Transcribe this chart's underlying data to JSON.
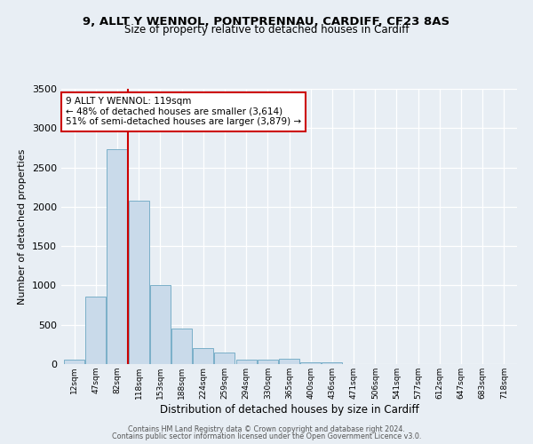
{
  "title_line1": "9, ALLT Y WENNOL, PONTPRENNAU, CARDIFF, CF23 8AS",
  "title_line2": "Size of property relative to detached houses in Cardiff",
  "xlabel": "Distribution of detached houses by size in Cardiff",
  "ylabel": "Number of detached properties",
  "categories": [
    "12sqm",
    "47sqm",
    "82sqm",
    "118sqm",
    "153sqm",
    "188sqm",
    "224sqm",
    "259sqm",
    "294sqm",
    "330sqm",
    "365sqm",
    "400sqm",
    "436sqm",
    "471sqm",
    "506sqm",
    "541sqm",
    "577sqm",
    "612sqm",
    "647sqm",
    "683sqm",
    "718sqm"
  ],
  "bar_heights": [
    55,
    855,
    2730,
    2075,
    1010,
    455,
    205,
    145,
    60,
    60,
    70,
    25,
    20,
    0,
    0,
    0,
    0,
    0,
    0,
    0,
    0
  ],
  "bar_color": "#c9daea",
  "bar_edge_color": "#7aafc8",
  "ylim": [
    0,
    3500
  ],
  "yticks": [
    0,
    500,
    1000,
    1500,
    2000,
    2500,
    3000,
    3500
  ],
  "property_line_x": 2.5,
  "property_line_color": "#cc0000",
  "annotation_line1": "9 ALLT Y WENNOL: 119sqm",
  "annotation_line2": "← 48% of detached houses are smaller (3,614)",
  "annotation_line3": "51% of semi-detached houses are larger (3,879) →",
  "annotation_box_color": "#ffffff",
  "annotation_box_edge": "#cc0000",
  "footer_line1": "Contains HM Land Registry data © Crown copyright and database right 2024.",
  "footer_line2": "Contains public sector information licensed under the Open Government Licence v3.0.",
  "background_color": "#e8eef4",
  "plot_bg_color": "#e8eef4",
  "grid_color": "#ffffff"
}
